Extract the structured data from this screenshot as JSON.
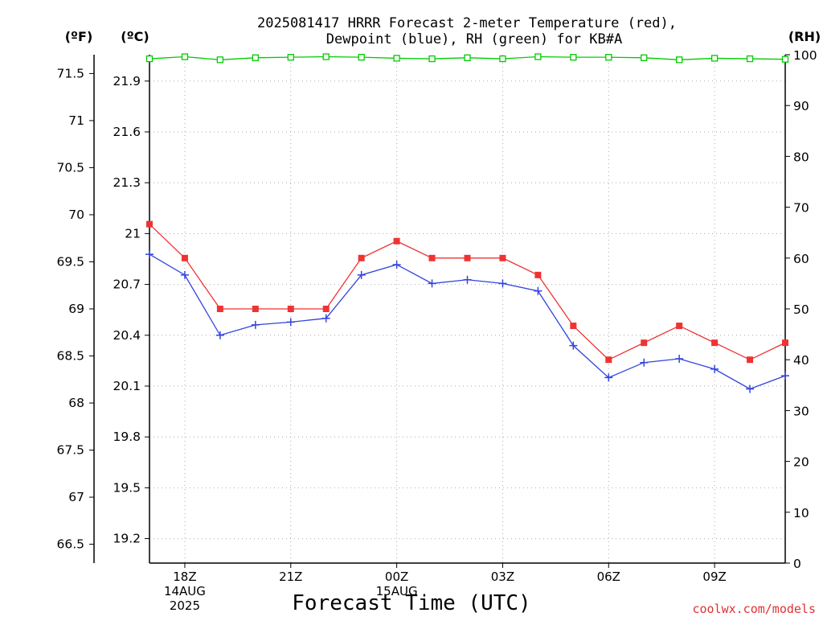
{
  "chart_data": {
    "type": "line",
    "title_line1": "2025081417 HRRR Forecast 2-meter Temperature (red),",
    "title_line2": "Dewpoint (blue), RH (green) for KB#A",
    "unit_f": "(ºF)",
    "unit_c": "(ºC)",
    "unit_rh": "(RH)",
    "xlabel": "Forecast Time (UTC)",
    "credit": "coolwx.com/models",
    "x_ticks": [
      {
        "hour": 1,
        "lines": [
          "18Z",
          "14AUG",
          "2025"
        ]
      },
      {
        "hour": 4,
        "lines": [
          "21Z"
        ]
      },
      {
        "hour": 7,
        "lines": [
          "00Z",
          "15AUG"
        ]
      },
      {
        "hour": 10,
        "lines": [
          "03Z"
        ]
      },
      {
        "hour": 13,
        "lines": [
          "06Z"
        ]
      },
      {
        "hour": 16,
        "lines": [
          "09Z"
        ]
      }
    ],
    "x_range": [
      0,
      18
    ],
    "f_ticks": [
      "66.5",
      "67",
      "67.5",
      "68",
      "68.5",
      "69",
      "69.5",
      "70",
      "70.5",
      "71",
      "71.5"
    ],
    "c_ticks": [
      "19.2",
      "19.5",
      "19.8",
      "20.1",
      "20.4",
      "20.7",
      "21",
      "21.3",
      "21.6",
      "21.9"
    ],
    "rh_ticks": [
      "0",
      "10",
      "20",
      "30",
      "40",
      "50",
      "60",
      "70",
      "80",
      "90",
      "100"
    ],
    "temp_f_range": [
      66.3,
      71.7
    ],
    "rh_range": [
      0,
      100
    ],
    "series": [
      {
        "name": "Temperature (red)",
        "color": "#ee3333",
        "marker": "square",
        "axis": "F",
        "x": [
          0,
          1,
          2,
          3,
          4,
          5,
          6,
          7,
          8,
          9,
          10,
          11,
          12,
          13,
          14,
          15,
          16,
          17,
          18
        ],
        "values": [
          69.9,
          69.54,
          69.0,
          69.0,
          69.0,
          69.0,
          69.54,
          69.72,
          69.54,
          69.54,
          69.54,
          69.36,
          68.82,
          68.46,
          68.64,
          68.82,
          68.64,
          68.46,
          68.64
        ]
      },
      {
        "name": "Dewpoint (blue)",
        "color": "#3344dd",
        "marker": "plus",
        "axis": "F",
        "x": [
          0,
          1,
          2,
          3,
          4,
          5,
          6,
          7,
          8,
          9,
          10,
          11,
          12,
          13,
          14,
          15,
          16,
          17,
          18
        ],
        "values": [
          69.58,
          69.36,
          68.72,
          68.83,
          68.86,
          68.9,
          69.36,
          69.47,
          69.27,
          69.31,
          69.27,
          69.19,
          68.61,
          68.27,
          68.43,
          68.47,
          68.36,
          68.15,
          68.29
        ]
      },
      {
        "name": "RH (green)",
        "color": "#00cc00",
        "marker": "open-square",
        "axis": "RH",
        "x": [
          0,
          1,
          2,
          3,
          4,
          5,
          6,
          7,
          8,
          9,
          10,
          11,
          12,
          13,
          14,
          15,
          16,
          17,
          18
        ],
        "values": [
          99.2,
          99.6,
          99.0,
          99.4,
          99.5,
          99.6,
          99.5,
          99.3,
          99.2,
          99.4,
          99.2,
          99.6,
          99.5,
          99.5,
          99.4,
          99.0,
          99.3,
          99.2,
          99.1
        ]
      }
    ],
    "grid": true
  }
}
